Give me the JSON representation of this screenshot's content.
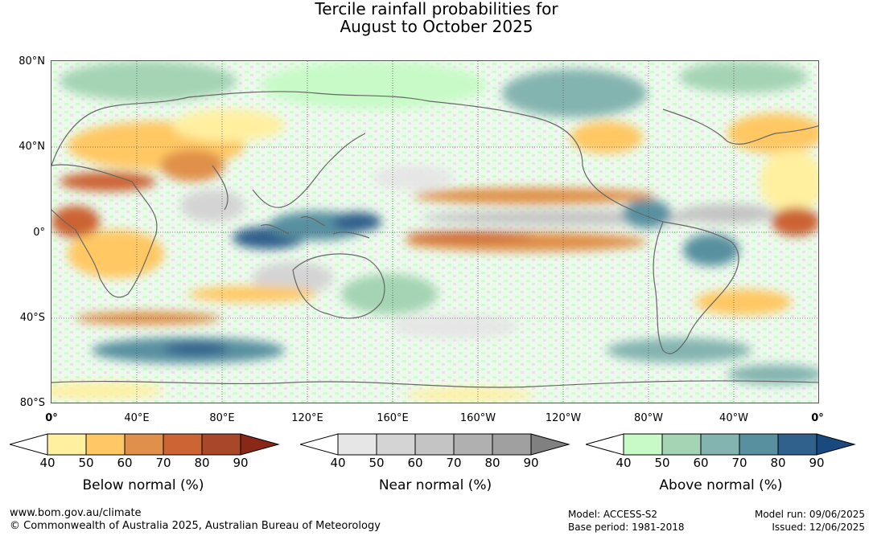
{
  "title_line1": "Tercile rainfall probabilities for",
  "title_line2": "August to October 2025",
  "lat_labels": [
    "80°N",
    "40°N",
    "0°",
    "40°S",
    "80°S"
  ],
  "lon_labels": [
    "0°",
    "40°E",
    "80°E",
    "120°E",
    "160°E",
    "160°W",
    "120°W",
    "80°W",
    "40°W",
    "0°"
  ],
  "colorbars": [
    {
      "label": "Below normal (%)",
      "ticks": [
        "40",
        "50",
        "60",
        "70",
        "80",
        "90"
      ],
      "colors": [
        "#ffffff",
        "#fff0a0",
        "#ffc864",
        "#e0904a",
        "#cc6434",
        "#a84828",
        "#8a2818"
      ]
    },
    {
      "label": "Near normal (%)",
      "ticks": [
        "40",
        "50",
        "60",
        "70",
        "80",
        "90"
      ],
      "colors": [
        "#ffffff",
        "#e6e6e6",
        "#d4d4d4",
        "#c4c4c4",
        "#b0b0b0",
        "#a0a0a0",
        "#808080"
      ]
    },
    {
      "label": "Above normal (%)",
      "ticks": [
        "40",
        "50",
        "60",
        "70",
        "80",
        "90"
      ],
      "colors": [
        "#ffffff",
        "#c8fac8",
        "#a4d4b4",
        "#84b4b0",
        "#5890a0",
        "#30608c",
        "#184a80"
      ]
    }
  ],
  "footer": {
    "website": "www.bom.gov.au/climate",
    "copyright": "© Commonwealth of Australia 2025, Australian Bureau of Meteorology",
    "model": "Model: ACCESS-S2",
    "base_period": "Base period: 1981-2018",
    "model_run": "Model run: 09/06/2025",
    "issued": "Issued: 12/06/2025"
  }
}
